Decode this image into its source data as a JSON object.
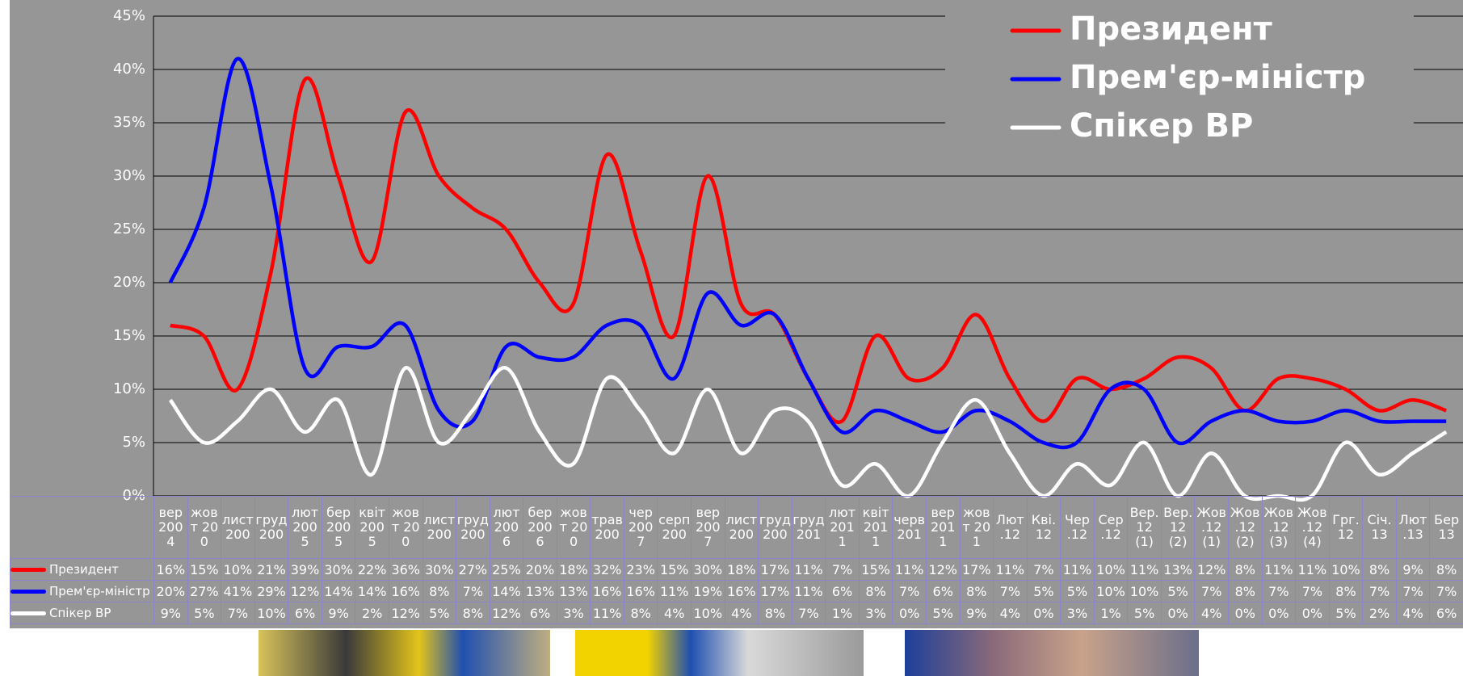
{
  "chart_data": {
    "type": "line",
    "categories": [
      "вер 2004",
      "жовт 200",
      "лист 200",
      "груд 200",
      "лют 2005",
      "бер 2005",
      "квіт 2005",
      "жовт 200",
      "лист 200",
      "груд 200",
      "лют 2006",
      "бер 2006",
      "жовт 200",
      "трав 200",
      "чер 2007",
      "серп 200",
      "вер 2007",
      "лист 200",
      "груд 200",
      "груд 201",
      "лют 2011",
      "квіт 2011",
      "черв 201",
      "вер 2011",
      "жовт 201",
      "Лют .12",
      "Кві. 12",
      "Чер .12",
      "Сер .12",
      "Вер. 12(1)",
      "Вер. 12(2)",
      "Жов .12(1)",
      "Жов .12(2)",
      "Жов .12(3)",
      "Жов .12(4)",
      "Грг. 12",
      "Січ. 13",
      "Лют .13",
      "Бер 13"
    ],
    "series": [
      {
        "name": "Президент",
        "color": "#ff0000",
        "values": [
          16,
          15,
          10,
          21,
          39,
          30,
          22,
          36,
          30,
          27,
          25,
          20,
          18,
          32,
          23,
          15,
          30,
          18,
          17,
          11,
          7,
          15,
          11,
          12,
          17,
          11,
          7,
          11,
          10,
          11,
          13,
          12,
          8,
          11,
          11,
          10,
          8,
          9,
          8
        ],
        "value_labels": [
          "16%",
          "15%",
          "10%",
          "21%",
          "39%",
          "30%",
          "22%",
          "36%",
          "30%",
          "27%",
          "25%",
          "20%",
          "18%",
          "32%",
          "23%",
          "15%",
          "30%",
          "18%",
          "17%",
          "11%",
          "7%",
          "15%",
          "11%",
          "12%",
          "17%",
          "11%",
          "7%",
          "11%",
          "10%",
          "11%",
          "13%",
          "12%",
          "8%",
          "11%",
          "11%",
          "10%",
          "8%",
          "9%",
          "8%"
        ]
      },
      {
        "name": "Прем'єр-міністр",
        "color": "#0000ff",
        "values": [
          20,
          27,
          41,
          29,
          12,
          14,
          14,
          16,
          8,
          7,
          14,
          13,
          13,
          16,
          16,
          11,
          19,
          16,
          17,
          11,
          6,
          8,
          7,
          6,
          8,
          7,
          5,
          5,
          10,
          10,
          5,
          7,
          8,
          7,
          7,
          8,
          7,
          7,
          7
        ],
        "value_labels": [
          "20%",
          "27%",
          "41%",
          "29%",
          "12%",
          "14%",
          "14%",
          "16%",
          "8%",
          "7%",
          "14%",
          "13%",
          "13%",
          "16%",
          "16%",
          "11%",
          "19%",
          "16%",
          "17%",
          "11%",
          "6%",
          "8%",
          "7%",
          "6%",
          "8%",
          "7%",
          "5%",
          "5%",
          "10%",
          "10%",
          "5%",
          "7%",
          "8%",
          "7%",
          "7%",
          "8%",
          "7%",
          "7%",
          "7%"
        ]
      },
      {
        "name": "Спікер ВР",
        "color": "#ffffff",
        "values": [
          9,
          5,
          7,
          10,
          6,
          9,
          2,
          12,
          5,
          8,
          12,
          6,
          3,
          11,
          8,
          4,
          10,
          4,
          8,
          7,
          1,
          3,
          0,
          5,
          9,
          4,
          0,
          3,
          1,
          5,
          0,
          4,
          0,
          0,
          0,
          5,
          2,
          4,
          6
        ],
        "value_labels": [
          "9%",
          "5%",
          "7%",
          "10%",
          "6%",
          "9%",
          "2%",
          "12%",
          "5%",
          "8%",
          "12%",
          "6%",
          "3%",
          "11%",
          "8%",
          "4%",
          "10%",
          "4%",
          "8%",
          "7%",
          "1%",
          "3%",
          "0%",
          "5%",
          "9%",
          "4%",
          "0%",
          "3%",
          "1%",
          "5%",
          "0%",
          "4%",
          "0%",
          "0%",
          "0%",
          "5%",
          "2%",
          "4%",
          "6%"
        ]
      }
    ],
    "table_series_names": [
      "Президент",
      "Прем'єр-міністр",
      "Спікер ВР"
    ],
    "ylim": [
      0,
      45
    ],
    "yticks": [
      {
        "value": 0,
        "label": "0%"
      },
      {
        "value": 5,
        "label": "5%"
      },
      {
        "value": 10,
        "label": "10%"
      },
      {
        "value": 15,
        "label": "15%"
      },
      {
        "value": 20,
        "label": "20%"
      },
      {
        "value": 25,
        "label": "25%"
      },
      {
        "value": 30,
        "label": "30%"
      },
      {
        "value": 35,
        "label": "35%"
      },
      {
        "value": 40,
        "label": "40%"
      },
      {
        "value": 45,
        "label": "45%"
      }
    ],
    "grid": true,
    "legend": "top-right"
  }
}
